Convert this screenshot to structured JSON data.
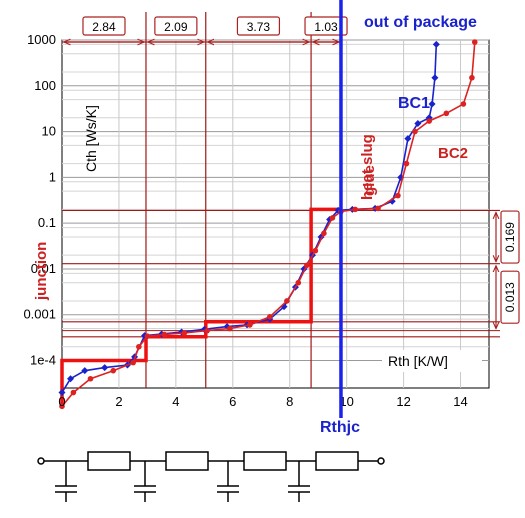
{
  "chart_data": {
    "type": "line",
    "title": "",
    "xlabel": "Rth  [K/W]",
    "ylabel": "Cth  [Ws/K]",
    "xlim": [
      0,
      15
    ],
    "ylim_log10": [
      -4.6,
      3
    ],
    "y_scale": "log",
    "grid": true,
    "x_ticks": [
      "0",
      "2",
      "4",
      "6",
      "8",
      "10",
      "12",
      "14"
    ],
    "x_tick_values": [
      0,
      2,
      4,
      6,
      8,
      10,
      12,
      14
    ],
    "y_ticks": [
      "1000",
      "100",
      "10",
      "1",
      "0.1",
      "0.01",
      "0.001",
      "1e-4"
    ],
    "y_tick_values": [
      1000,
      100,
      10,
      1,
      0.1,
      0.01,
      0.001,
      0.0001
    ],
    "series": [
      {
        "name": "BC1",
        "color": "#1a22cc",
        "points": [
          [
            0,
            2e-05
          ],
          [
            0.3,
            4e-05
          ],
          [
            0.8,
            6e-05
          ],
          [
            1.5,
            7e-05
          ],
          [
            2.3,
            8e-05
          ],
          [
            2.55,
            0.00012
          ],
          [
            2.9,
            0.00035
          ],
          [
            3.5,
            0.00038
          ],
          [
            4.2,
            0.00042
          ],
          [
            5.0,
            0.00048
          ],
          [
            5.8,
            0.00055
          ],
          [
            6.5,
            0.0006
          ],
          [
            7.3,
            0.0008
          ],
          [
            7.8,
            0.0015
          ],
          [
            8.2,
            0.004
          ],
          [
            8.5,
            0.01
          ],
          [
            8.8,
            0.02
          ],
          [
            9.1,
            0.05
          ],
          [
            9.4,
            0.12
          ],
          [
            9.7,
            0.19
          ],
          [
            10.2,
            0.2
          ],
          [
            11.0,
            0.21
          ],
          [
            11.6,
            0.3
          ],
          [
            11.9,
            1.0
          ],
          [
            12.15,
            7
          ],
          [
            12.5,
            15
          ],
          [
            12.9,
            20
          ],
          [
            13.0,
            40
          ],
          [
            13.1,
            150
          ],
          [
            13.15,
            800
          ]
        ]
      },
      {
        "name": "BC2",
        "color": "#dd2222",
        "points": [
          [
            0,
            1e-05
          ],
          [
            0.4,
            2e-05
          ],
          [
            1.0,
            4e-05
          ],
          [
            1.8,
            6e-05
          ],
          [
            2.5,
            9e-05
          ],
          [
            2.7,
            0.0002
          ],
          [
            3.0,
            0.00034
          ],
          [
            3.6,
            0.00037
          ],
          [
            4.3,
            0.0004
          ],
          [
            5.1,
            0.00045
          ],
          [
            5.9,
            0.0005
          ],
          [
            6.6,
            0.0006
          ],
          [
            7.3,
            0.0009
          ],
          [
            7.9,
            0.002
          ],
          [
            8.3,
            0.005
          ],
          [
            8.6,
            0.012
          ],
          [
            8.9,
            0.025
          ],
          [
            9.2,
            0.06
          ],
          [
            9.5,
            0.13
          ],
          [
            9.8,
            0.18
          ],
          [
            10.3,
            0.2
          ],
          [
            11.1,
            0.21
          ],
          [
            11.8,
            0.4
          ],
          [
            12.1,
            2.0
          ],
          [
            12.4,
            10
          ],
          [
            12.9,
            17
          ],
          [
            13.5,
            25
          ],
          [
            14.1,
            40
          ],
          [
            14.4,
            150
          ],
          [
            14.5,
            900
          ]
        ]
      }
    ],
    "foster_steps": [
      [
        0,
        1e-05
      ],
      [
        0,
        0.0001
      ],
      [
        2.95,
        0.0001
      ],
      [
        2.95,
        0.00033
      ],
      [
        5.05,
        0.00033
      ],
      [
        5.05,
        0.0007
      ],
      [
        8.75,
        0.0007
      ],
      [
        8.75,
        0.2
      ],
      [
        9.8,
        0.2
      ]
    ],
    "rthjc_x": 9.8,
    "vertical_markers": [
      2.95,
      5.05,
      8.75
    ],
    "horizontal_markers": [
      0.19,
      0.013,
      0.0007,
      0.00045,
      0.00033
    ],
    "segment_labels": [
      "2.84",
      "2.09",
      "3.73",
      "1.03"
    ],
    "right_labels": [
      "0.169",
      "0.013"
    ],
    "annotations": {
      "out_of_package": "out of package",
      "bc1": "BC1",
      "bc2": "BC2",
      "heat_slug": "heat slug",
      "glue": "glue",
      "junction": "junction",
      "rthjc": "Rthjc"
    }
  }
}
